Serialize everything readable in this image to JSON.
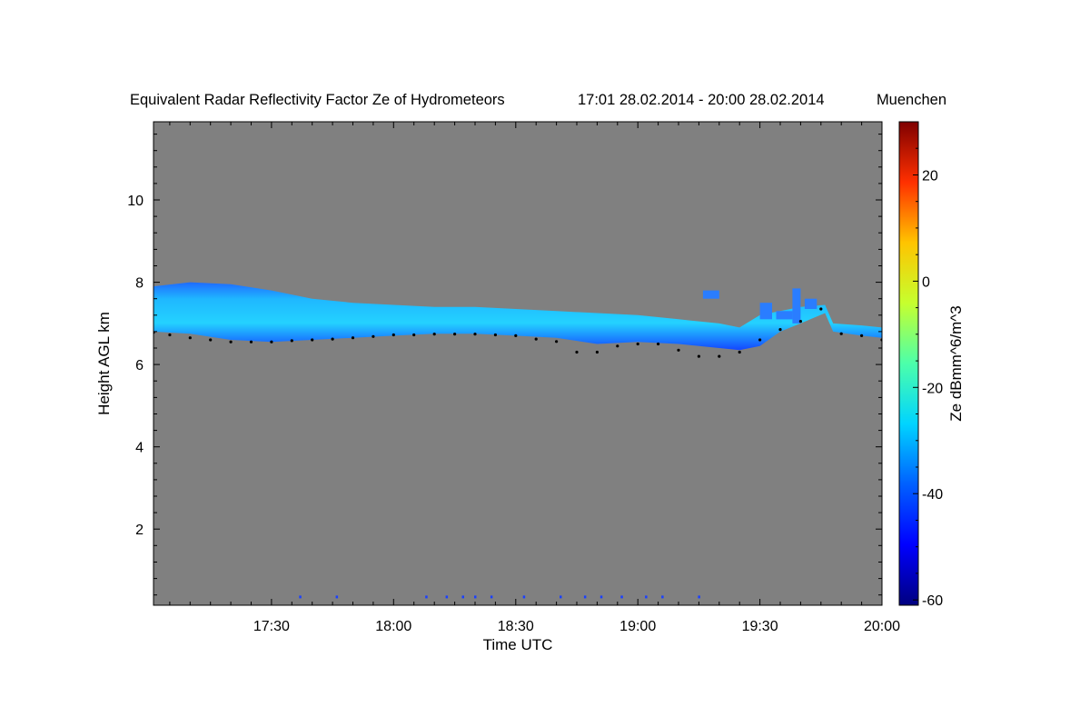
{
  "chart_data": {
    "type": "heatmap",
    "title": "Equivalent Radar Reflectivity Factor Ze of Hydrometeors",
    "period": "17:01 28.02.2014 - 20:00 28.02.2014",
    "location": "Muenchen",
    "xlabel": "Time UTC",
    "ylabel": "Height AGL km",
    "x_range_minutes": [
      1021,
      1200
    ],
    "y_range_km": [
      0.15,
      11.9
    ],
    "x_ticks": [
      {
        "value": 1050,
        "label": "17:30"
      },
      {
        "value": 1080,
        "label": "18:00"
      },
      {
        "value": 1110,
        "label": "18:30"
      },
      {
        "value": 1140,
        "label": "19:00"
      },
      {
        "value": 1170,
        "label": "19:30"
      },
      {
        "value": 1200,
        "label": "20:00"
      }
    ],
    "y_ticks": [
      {
        "value": 2,
        "label": "2"
      },
      {
        "value": 4,
        "label": "4"
      },
      {
        "value": 6,
        "label": "6"
      },
      {
        "value": 8,
        "label": "8"
      },
      {
        "value": 10,
        "label": "10"
      }
    ],
    "colorbar": {
      "label": "Ze dBmm^6/m^3",
      "range": [
        -61,
        30
      ],
      "ticks": [
        {
          "value": 20,
          "label": "20"
        },
        {
          "value": 0,
          "label": "0"
        },
        {
          "value": -20,
          "label": "-20"
        },
        {
          "value": -40,
          "label": "-40"
        },
        {
          "value": -60,
          "label": "-60"
        }
      ]
    },
    "no_signal_color": "#808080",
    "cloud_layer": {
      "description": "ice cloud layer (blue/cyan Ze about -45 to -30 dBZ)",
      "time_minutes": [
        1021,
        1030,
        1040,
        1050,
        1060,
        1070,
        1080,
        1090,
        1100,
        1110,
        1120,
        1130,
        1140,
        1150,
        1160,
        1165,
        1170,
        1175,
        1180,
        1186,
        1188,
        1195,
        1200
      ],
      "top_km": [
        7.9,
        8.0,
        7.95,
        7.8,
        7.6,
        7.5,
        7.45,
        7.4,
        7.4,
        7.35,
        7.3,
        7.25,
        7.2,
        7.1,
        7.0,
        6.9,
        7.2,
        7.3,
        7.4,
        7.45,
        7.0,
        6.95,
        6.9
      ],
      "base_km": [
        6.8,
        6.75,
        6.6,
        6.55,
        6.6,
        6.65,
        6.7,
        6.75,
        6.75,
        6.7,
        6.65,
        6.5,
        6.55,
        6.5,
        6.4,
        6.35,
        6.45,
        6.8,
        7.0,
        7.25,
        6.8,
        6.7,
        6.65
      ]
    },
    "ceilometer_base_points_km": [
      [
        1021,
        6.78
      ],
      [
        1025,
        6.72
      ],
      [
        1030,
        6.65
      ],
      [
        1035,
        6.6
      ],
      [
        1040,
        6.55
      ],
      [
        1045,
        6.55
      ],
      [
        1050,
        6.55
      ],
      [
        1055,
        6.58
      ],
      [
        1060,
        6.6
      ],
      [
        1065,
        6.62
      ],
      [
        1070,
        6.65
      ],
      [
        1075,
        6.68
      ],
      [
        1080,
        6.72
      ],
      [
        1085,
        6.72
      ],
      [
        1090,
        6.74
      ],
      [
        1095,
        6.74
      ],
      [
        1100,
        6.74
      ],
      [
        1105,
        6.72
      ],
      [
        1110,
        6.7
      ],
      [
        1115,
        6.62
      ],
      [
        1120,
        6.56
      ],
      [
        1125,
        6.3
      ],
      [
        1130,
        6.3
      ],
      [
        1135,
        6.45
      ],
      [
        1140,
        6.5
      ],
      [
        1145,
        6.5
      ],
      [
        1150,
        6.35
      ],
      [
        1155,
        6.2
      ],
      [
        1160,
        6.2
      ],
      [
        1165,
        6.3
      ],
      [
        1170,
        6.6
      ],
      [
        1175,
        6.85
      ],
      [
        1180,
        7.05
      ],
      [
        1185,
        7.35
      ],
      [
        1190,
        6.75
      ],
      [
        1195,
        6.7
      ],
      [
        1200,
        6.6
      ]
    ],
    "aloft_fragments": [
      {
        "time_minutes": [
          1156,
          1160
        ],
        "top_km": 7.8,
        "base_km": 7.6
      },
      {
        "time_minutes": [
          1170,
          1173
        ],
        "top_km": 7.5,
        "base_km": 7.1
      },
      {
        "time_minutes": [
          1174,
          1178
        ],
        "top_km": 7.3,
        "base_km": 7.1
      },
      {
        "time_minutes": [
          1178,
          1180
        ],
        "top_km": 7.85,
        "base_km": 7.0
      },
      {
        "time_minutes": [
          1181,
          1184
        ],
        "top_km": 7.6,
        "base_km": 7.35
      }
    ],
    "near_ground_echoes_minutes": [
      1057,
      1066,
      1088,
      1093,
      1097,
      1100,
      1104,
      1112,
      1121,
      1127,
      1131,
      1136,
      1142,
      1146,
      1155
    ]
  }
}
